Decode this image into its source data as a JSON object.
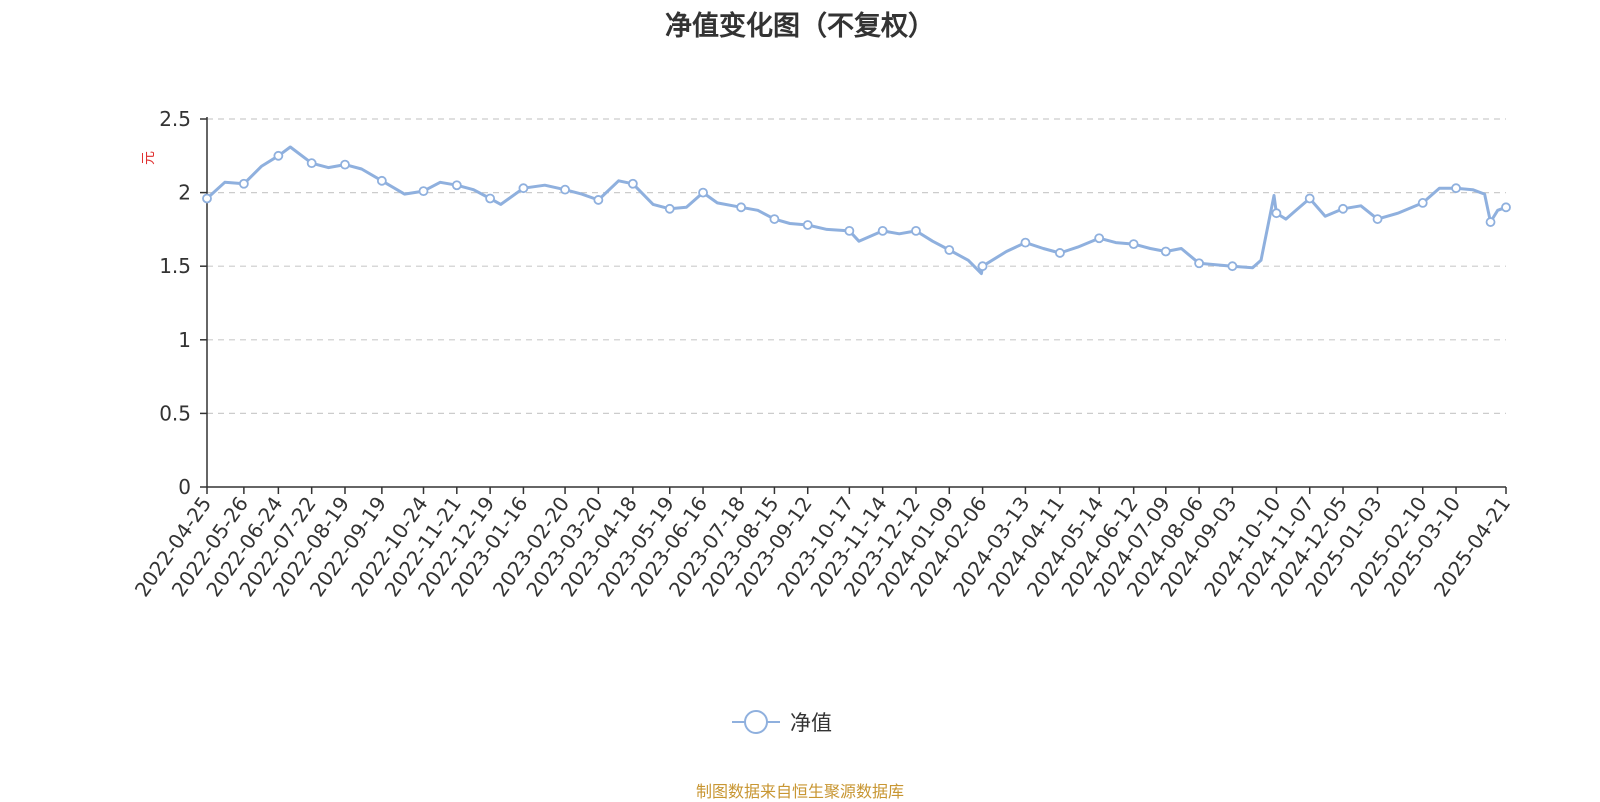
{
  "chart_data": {
    "type": "line",
    "title": "净值变化图（不复权）",
    "ylabel": "元",
    "ylim": [
      0,
      2.5
    ],
    "yticks": [
      "0",
      "0.5",
      "1",
      "1.5",
      "2",
      "2.5"
    ],
    "grid": true,
    "legend_position": "bottom-center",
    "colors": {
      "line": "#8fb0de",
      "marker_fill": "#ffffff",
      "grid": "#cccccc",
      "axis": "#333333",
      "ylabel": "#e03030",
      "source": "#c89632"
    },
    "categories": [
      "2022-04-25",
      "2022-05-26",
      "2022-06-24",
      "2022-07-22",
      "2022-08-19",
      "2022-09-19",
      "2022-10-24",
      "2022-11-21",
      "2022-12-19",
      "2023-01-16",
      "2023-02-20",
      "2023-03-20",
      "2023-04-18",
      "2023-05-19",
      "2023-06-16",
      "2023-07-18",
      "2023-08-15",
      "2023-09-12",
      "2023-10-17",
      "2023-11-14",
      "2023-12-12",
      "2024-01-09",
      "2024-02-06",
      "2024-03-13",
      "2024-04-11",
      "2024-05-14",
      "2024-06-12",
      "2024-07-09",
      "2024-08-06",
      "2024-09-03",
      "2024-10-10",
      "2024-11-07",
      "2024-12-05",
      "2025-01-03",
      "2025-02-10",
      "2025-03-10",
      "2025-04-21"
    ],
    "series": [
      {
        "name": "净值",
        "points": [
          {
            "x": "2022-04-25",
            "y": 1.96
          },
          {
            "x": "2022-05-10",
            "y": 2.07
          },
          {
            "x": "2022-05-26",
            "y": 2.06
          },
          {
            "x": "2022-06-10",
            "y": 2.18
          },
          {
            "x": "2022-06-24",
            "y": 2.25
          },
          {
            "x": "2022-07-04",
            "y": 2.31
          },
          {
            "x": "2022-07-22",
            "y": 2.2
          },
          {
            "x": "2022-08-05",
            "y": 2.17
          },
          {
            "x": "2022-08-19",
            "y": 2.19
          },
          {
            "x": "2022-09-02",
            "y": 2.16
          },
          {
            "x": "2022-09-19",
            "y": 2.08
          },
          {
            "x": "2022-10-08",
            "y": 1.99
          },
          {
            "x": "2022-10-24",
            "y": 2.01
          },
          {
            "x": "2022-11-07",
            "y": 2.07
          },
          {
            "x": "2022-11-21",
            "y": 2.05
          },
          {
            "x": "2022-12-05",
            "y": 2.02
          },
          {
            "x": "2022-12-19",
            "y": 1.96
          },
          {
            "x": "2022-12-28",
            "y": 1.92
          },
          {
            "x": "2023-01-16",
            "y": 2.03
          },
          {
            "x": "2023-02-03",
            "y": 2.05
          },
          {
            "x": "2023-02-20",
            "y": 2.02
          },
          {
            "x": "2023-03-06",
            "y": 1.99
          },
          {
            "x": "2023-03-20",
            "y": 1.95
          },
          {
            "x": "2023-04-06",
            "y": 2.08
          },
          {
            "x": "2023-04-18",
            "y": 2.06
          },
          {
            "x": "2023-05-05",
            "y": 1.92
          },
          {
            "x": "2023-05-19",
            "y": 1.89
          },
          {
            "x": "2023-06-02",
            "y": 1.9
          },
          {
            "x": "2023-06-16",
            "y": 2.0
          },
          {
            "x": "2023-06-28",
            "y": 1.93
          },
          {
            "x": "2023-07-18",
            "y": 1.9
          },
          {
            "x": "2023-08-01",
            "y": 1.88
          },
          {
            "x": "2023-08-15",
            "y": 1.82
          },
          {
            "x": "2023-08-28",
            "y": 1.79
          },
          {
            "x": "2023-09-12",
            "y": 1.78
          },
          {
            "x": "2023-09-28",
            "y": 1.75
          },
          {
            "x": "2023-10-17",
            "y": 1.74
          },
          {
            "x": "2023-10-25",
            "y": 1.67
          },
          {
            "x": "2023-11-14",
            "y": 1.74
          },
          {
            "x": "2023-11-28",
            "y": 1.72
          },
          {
            "x": "2023-12-12",
            "y": 1.74
          },
          {
            "x": "2023-12-26",
            "y": 1.67
          },
          {
            "x": "2024-01-09",
            "y": 1.61
          },
          {
            "x": "2024-01-25",
            "y": 1.54
          },
          {
            "x": "2024-02-05",
            "y": 1.45
          },
          {
            "x": "2024-02-06",
            "y": 1.5
          },
          {
            "x": "2024-02-26",
            "y": 1.6
          },
          {
            "x": "2024-03-13",
            "y": 1.66
          },
          {
            "x": "2024-03-28",
            "y": 1.62
          },
          {
            "x": "2024-04-11",
            "y": 1.59
          },
          {
            "x": "2024-04-26",
            "y": 1.63
          },
          {
            "x": "2024-05-14",
            "y": 1.69
          },
          {
            "x": "2024-05-28",
            "y": 1.66
          },
          {
            "x": "2024-06-12",
            "y": 1.65
          },
          {
            "x": "2024-06-26",
            "y": 1.62
          },
          {
            "x": "2024-07-09",
            "y": 1.6
          },
          {
            "x": "2024-07-22",
            "y": 1.62
          },
          {
            "x": "2024-08-06",
            "y": 1.52
          },
          {
            "x": "2024-08-20",
            "y": 1.51
          },
          {
            "x": "2024-09-03",
            "y": 1.5
          },
          {
            "x": "2024-09-20",
            "y": 1.49
          },
          {
            "x": "2024-09-27",
            "y": 1.54
          },
          {
            "x": "2024-10-08",
            "y": 1.98
          },
          {
            "x": "2024-10-10",
            "y": 1.86
          },
          {
            "x": "2024-10-18",
            "y": 1.82
          },
          {
            "x": "2024-10-25",
            "y": 1.87
          },
          {
            "x": "2024-11-07",
            "y": 1.96
          },
          {
            "x": "2024-11-20",
            "y": 1.84
          },
          {
            "x": "2024-12-05",
            "y": 1.89
          },
          {
            "x": "2024-12-20",
            "y": 1.91
          },
          {
            "x": "2025-01-03",
            "y": 1.82
          },
          {
            "x": "2025-01-20",
            "y": 1.86
          },
          {
            "x": "2025-02-10",
            "y": 1.93
          },
          {
            "x": "2025-02-24",
            "y": 2.03
          },
          {
            "x": "2025-03-10",
            "y": 2.03
          },
          {
            "x": "2025-03-24",
            "y": 2.02
          },
          {
            "x": "2025-04-03",
            "y": 1.99
          },
          {
            "x": "2025-04-08",
            "y": 1.8
          },
          {
            "x": "2025-04-14",
            "y": 1.88
          },
          {
            "x": "2025-04-21",
            "y": 1.9
          }
        ],
        "marker_dates": [
          "2022-04-25",
          "2022-05-26",
          "2022-06-24",
          "2022-07-22",
          "2022-08-19",
          "2022-09-19",
          "2022-10-24",
          "2022-11-21",
          "2022-12-19",
          "2023-01-16",
          "2023-02-20",
          "2023-03-20",
          "2023-04-18",
          "2023-05-19",
          "2023-06-16",
          "2023-07-18",
          "2023-08-15",
          "2023-09-12",
          "2023-10-17",
          "2023-11-14",
          "2023-12-12",
          "2024-01-09",
          "2024-02-06",
          "2024-03-13",
          "2024-04-11",
          "2024-05-14",
          "2024-06-12",
          "2024-07-09",
          "2024-08-06",
          "2024-09-03",
          "2024-10-10",
          "2024-11-07",
          "2024-12-05",
          "2025-01-03",
          "2025-02-10",
          "2025-03-10",
          "2025-04-08",
          "2025-04-21"
        ]
      }
    ]
  },
  "footer": {
    "source": "制图数据来自恒生聚源数据库"
  }
}
